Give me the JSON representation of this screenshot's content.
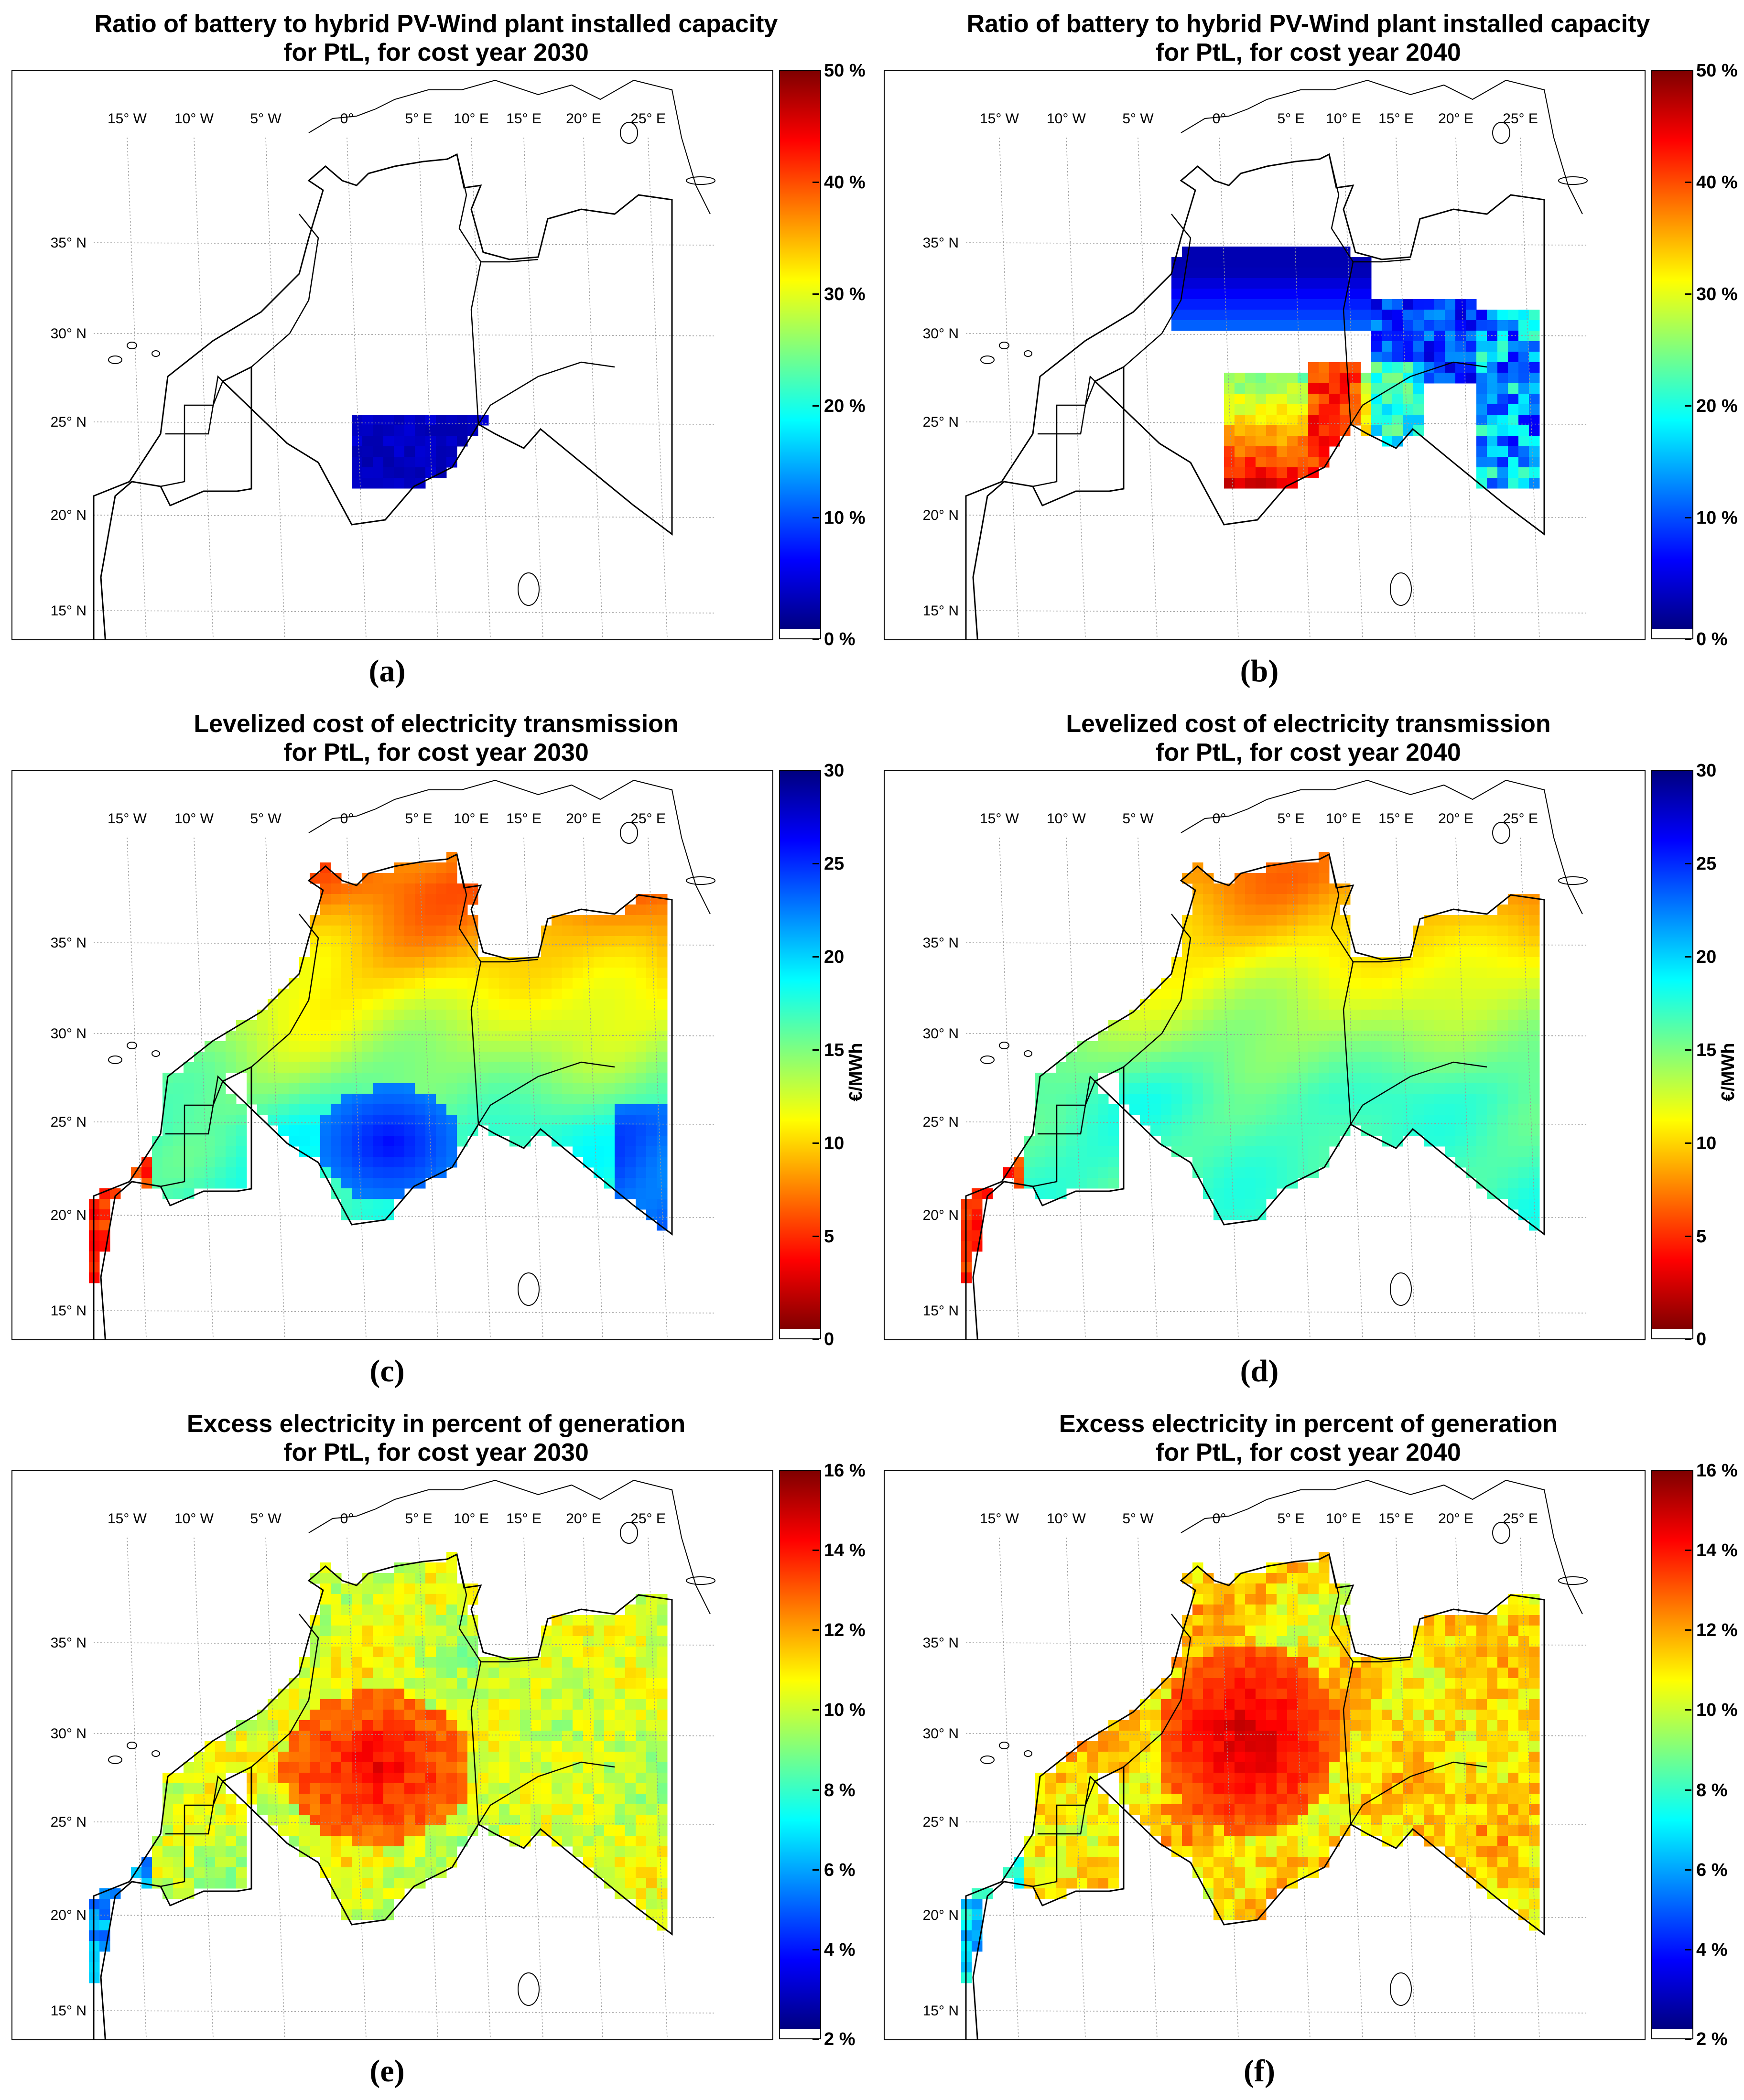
{
  "panels": [
    {
      "id": "a",
      "title_line1": "Ratio of battery to hybrid PV-Wind plant installed capacity",
      "title_line2": "for PtL, for cost year 2030",
      "label": "(a)",
      "colormap": "jet",
      "colorbar_ticks": [
        "50 %",
        "40 %",
        "30 %",
        "20 %",
        "10 %",
        "0 %"
      ],
      "colorbar_unit": "",
      "colorbar_range": [
        0,
        50
      ],
      "variant": "battery2030"
    },
    {
      "id": "b",
      "title_line1": "Ratio of battery to hybrid PV-Wind plant installed capacity",
      "title_line2": "for PtL, for cost year 2040",
      "label": "(b)",
      "colormap": "jet",
      "colorbar_ticks": [
        "50 %",
        "40 %",
        "30 %",
        "20 %",
        "10 %",
        "0 %"
      ],
      "colorbar_unit": "",
      "colorbar_range": [
        0,
        50
      ],
      "variant": "battery2040"
    },
    {
      "id": "c",
      "title_line1": "Levelized cost of electricity transmission",
      "title_line2": "for PtL, for cost year 2030",
      "label": "(c)",
      "colormap": "jet_reversed",
      "colorbar_ticks": [
        "30",
        "25",
        "20",
        "15",
        "10",
        "5",
        "0"
      ],
      "colorbar_unit": "€/MWh",
      "colorbar_range": [
        0,
        30
      ],
      "variant": "transmission2030"
    },
    {
      "id": "d",
      "title_line1": "Levelized cost of electricity transmission",
      "title_line2": "for PtL, for cost year 2040",
      "label": "(d)",
      "colormap": "jet_reversed",
      "colorbar_ticks": [
        "30",
        "25",
        "20",
        "15",
        "10",
        "5",
        "0"
      ],
      "colorbar_unit": "€/MWh",
      "colorbar_range": [
        0,
        30
      ],
      "variant": "transmission2040"
    },
    {
      "id": "e",
      "title_line1": "Excess electricity in percent of generation",
      "title_line2": "for PtL, for cost year 2030",
      "label": "(e)",
      "colormap": "jet",
      "colorbar_ticks": [
        "16 %",
        "14 %",
        "12 %",
        "10 %",
        "8 %",
        "6 %",
        "4 %",
        "2 %"
      ],
      "colorbar_unit": "",
      "colorbar_range": [
        2,
        16
      ],
      "variant": "excess2030"
    },
    {
      "id": "f",
      "title_line1": "Excess electricity in percent of generation",
      "title_line2": "for PtL, for cost year 2040",
      "label": "(f)",
      "colormap": "jet",
      "colorbar_ticks": [
        "16 %",
        "14 %",
        "12 %",
        "10 %",
        "8 %",
        "6 %",
        "4 %",
        "2 %"
      ],
      "colorbar_unit": "",
      "colorbar_range": [
        2,
        16
      ],
      "variant": "excess2040"
    }
  ],
  "axes": {
    "longitude_labels": [
      "15° W",
      "10° W",
      "5° W",
      "0°",
      "5° E",
      "10° E",
      "15° E",
      "20° E",
      "25° E"
    ],
    "latitude_labels": [
      "35° N",
      "30° N",
      "25° N",
      "20° N",
      "15° N"
    ]
  },
  "colors": {
    "jet": [
      "#00007f",
      "#0000ff",
      "#007fff",
      "#00ffff",
      "#7fff7f",
      "#ffff00",
      "#ff7f00",
      "#ff0000",
      "#7f0000"
    ],
    "border": "#000000",
    "grid": "#9a9a9a"
  }
}
